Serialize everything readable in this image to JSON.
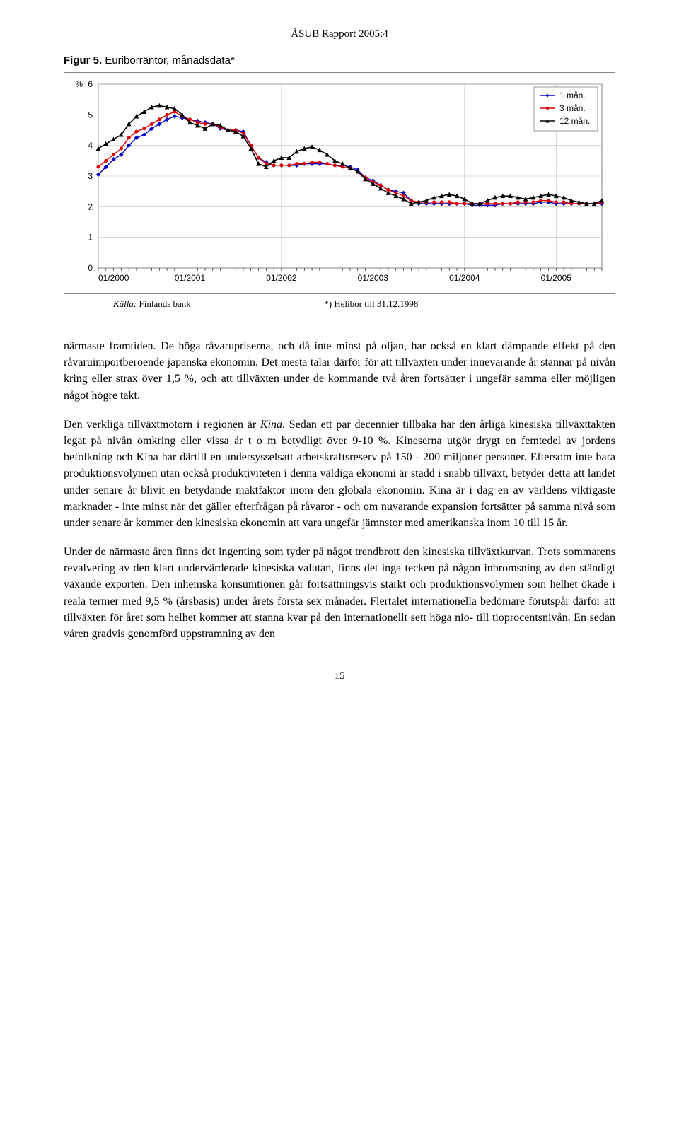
{
  "header": "ÅSUB Rapport 2005:4",
  "figure": {
    "title_bold": "Figur 5.",
    "title_rest": " Euriborräntor, månadsdata*",
    "chart": {
      "type": "line",
      "ylabel": "%",
      "ylim": [
        0,
        6
      ],
      "ytick_step": 1,
      "x_categories": [
        "01/2000",
        "01/2001",
        "01/2002",
        "01/2003",
        "01/2004",
        "01/2005"
      ],
      "x_major_ticks": [
        0,
        12,
        24,
        36,
        48,
        60
      ],
      "x_range": [
        0,
        66
      ],
      "grid_color": "#c0c0c0",
      "plot_border_color": "#808080",
      "background_color": "#ffffff",
      "legend": {
        "items": [
          "1 mån.",
          "3 mån.",
          "12 mån."
        ],
        "border_color": "#808080",
        "bg": "#ffffff"
      },
      "series": [
        {
          "name": "1 mån.",
          "color": "#0000c8",
          "marker": "diamond",
          "marker_size": 5,
          "line_width": 1.4,
          "y": [
            3.05,
            3.3,
            3.55,
            3.7,
            4.0,
            4.25,
            4.35,
            4.55,
            4.7,
            4.85,
            4.95,
            4.9,
            4.85,
            4.8,
            4.75,
            4.7,
            4.55,
            4.5,
            4.5,
            4.45,
            4.0,
            3.6,
            3.45,
            3.35,
            3.35,
            3.35,
            3.35,
            3.4,
            3.4,
            3.4,
            3.4,
            3.35,
            3.35,
            3.3,
            3.2,
            2.95,
            2.85,
            2.7,
            2.55,
            2.5,
            2.45,
            2.2,
            2.1,
            2.1,
            2.1,
            2.1,
            2.1,
            2.1,
            2.1,
            2.05,
            2.05,
            2.05,
            2.05,
            2.1,
            2.1,
            2.1,
            2.1,
            2.1,
            2.15,
            2.15,
            2.1,
            2.1,
            2.1,
            2.1,
            2.1,
            2.1,
            2.1
          ]
        },
        {
          "name": "3 mån.",
          "color": "#e00000",
          "marker": "circle",
          "marker_size": 4,
          "line_width": 1.4,
          "y": [
            3.3,
            3.5,
            3.7,
            3.9,
            4.25,
            4.45,
            4.55,
            4.7,
            4.85,
            5.0,
            5.1,
            4.95,
            4.85,
            4.75,
            4.7,
            4.7,
            4.6,
            4.5,
            4.5,
            4.4,
            4.0,
            3.6,
            3.4,
            3.35,
            3.35,
            3.35,
            3.4,
            3.4,
            3.45,
            3.45,
            3.4,
            3.35,
            3.3,
            3.25,
            3.15,
            2.95,
            2.8,
            2.7,
            2.55,
            2.45,
            2.35,
            2.2,
            2.15,
            2.15,
            2.15,
            2.15,
            2.15,
            2.1,
            2.1,
            2.1,
            2.1,
            2.1,
            2.1,
            2.1,
            2.1,
            2.15,
            2.15,
            2.15,
            2.2,
            2.2,
            2.15,
            2.15,
            2.1,
            2.1,
            2.1,
            2.1,
            2.15
          ]
        },
        {
          "name": "12 mån.",
          "color": "#000000",
          "marker": "triangle",
          "marker_size": 5,
          "line_width": 1.6,
          "y": [
            3.9,
            4.05,
            4.2,
            4.35,
            4.7,
            4.95,
            5.1,
            5.25,
            5.3,
            5.25,
            5.2,
            5.0,
            4.75,
            4.65,
            4.55,
            4.7,
            4.65,
            4.5,
            4.45,
            4.3,
            3.9,
            3.4,
            3.3,
            3.5,
            3.6,
            3.6,
            3.8,
            3.9,
            3.95,
            3.85,
            3.7,
            3.5,
            3.4,
            3.25,
            3.15,
            2.9,
            2.75,
            2.6,
            2.45,
            2.35,
            2.25,
            2.1,
            2.15,
            2.2,
            2.3,
            2.35,
            2.4,
            2.35,
            2.25,
            2.1,
            2.1,
            2.2,
            2.3,
            2.35,
            2.35,
            2.3,
            2.25,
            2.3,
            2.35,
            2.4,
            2.35,
            2.3,
            2.2,
            2.15,
            2.1,
            2.1,
            2.2
          ]
        }
      ]
    },
    "source_label": "Källa:",
    "source_value": "Finlands bank",
    "source_note": "*) Helibor till 31.12.1998"
  },
  "paragraphs": {
    "p1": "närmaste framtiden. De höga råvarupriserna, och då inte minst på oljan, har också en klart dämpande effekt på den råvaruimportberoende japanska ekonomin. Det mesta talar därför för att tillväxten under innevarande år stannar på nivån kring eller strax över 1,5 %, och att tillväxten under de kommande två åren fortsätter i ungefär samma eller möjligen något högre takt.",
    "p2_a": "Den verkliga tillväxtmotorn i regionen är ",
    "p2_kina": "Kina",
    "p2_b": ". Sedan ett par decennier tillbaka har  den årliga kinesiska tillväxttakten legat på nivån omkring eller vissa år t o m betydligt över 9-10 %. Kineserna utgör drygt en femtedel av jordens befolkning och Kina har därtill en undersysselsatt arbetskraftsreserv på 150 - 200 miljoner personer. Eftersom inte bara produktionsvolymen utan också produktiviteten i denna väldiga ekonomi är stadd i snabb tillväxt, betyder detta att landet under senare år blivit en betydande maktfaktor inom den globala ekonomin. Kina är i dag en av världens viktigaste marknader - inte minst när det gäller efterfrågan på råvaror - och om nuvarande expansion fortsätter på samma nivå som under senare år kommer den kinesiska ekonomin att vara ungefär jämnstor med amerikanska inom 10 till 15 år.",
    "p3": "Under de närmaste åren finns det ingenting som tyder på något trendbrott den kinesiska tillväxtkurvan. Trots sommarens revalvering av den klart undervärderade kinesiska valutan, finns det inga tecken på någon inbromsning av den ständigt växande exporten. Den inhemska konsumtionen går fortsättningsvis starkt och produktionsvolymen som helhet ökade i reala termer med 9,5 % (årsbasis) under årets första sex månader. Flertalet internationella bedömare förutspår därför att tillväxten för året som helhet kommer att stanna kvar på den internationellt sett höga nio- till  tioprocentsnivån. En sedan våren gradvis genomförd uppstramning av den"
  },
  "page_number": "15"
}
